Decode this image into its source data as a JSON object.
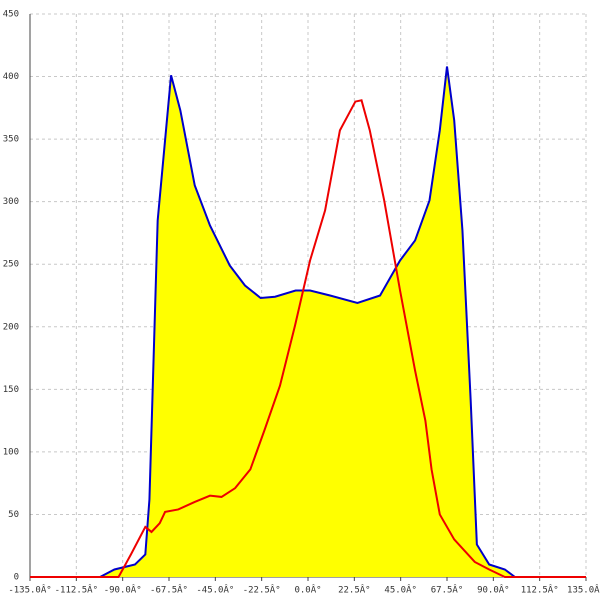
{
  "chart_data": {
    "type": "line",
    "xlim": [
      -135,
      135
    ],
    "xticks": [
      {
        "value": -135,
        "label": "-135.0Â°"
      },
      {
        "value": -112.5,
        "label": "-112.5Â°"
      },
      {
        "value": -90,
        "label": "-90.0Â°"
      },
      {
        "value": -67.5,
        "label": "-67.5Â°"
      },
      {
        "value": -45,
        "label": "-45.0Â°"
      },
      {
        "value": -22.5,
        "label": "-22.5Â°"
      },
      {
        "value": 0,
        "label": "0.0Â°"
      },
      {
        "value": 22.5,
        "label": "22.5Â°"
      },
      {
        "value": 45,
        "label": "45.0Â°"
      },
      {
        "value": 67.5,
        "label": "67.5Â°"
      },
      {
        "value": 90,
        "label": "90.0Â°"
      },
      {
        "value": 112.5,
        "label": "112.5Â°"
      },
      {
        "value": 135,
        "label": "135.0Â°"
      }
    ],
    "ylim": [
      0,
      450
    ],
    "yticks": [
      0,
      50,
      100,
      150,
      200,
      250,
      300,
      350,
      400,
      450
    ],
    "grid": true,
    "series": [
      {
        "color": "#0000cc",
        "fill": "#ffff00",
        "x": [
          -101,
          -94,
          -84,
          -79,
          -77,
          -73,
          -66.5,
          -62,
          -55,
          -47.6,
          -38,
          -30.6,
          -23,
          -16,
          -6,
          1,
          10.7,
          24,
          35,
          44.7,
          52,
          59,
          64,
          67.5,
          71,
          75,
          79,
          82,
          88,
          95.6,
          100.5
        ],
        "values": [
          0,
          6,
          10,
          18,
          62,
          285,
          401,
          373,
          313,
          281,
          249,
          233,
          223,
          224,
          229,
          229,
          225,
          219,
          225,
          253,
          269,
          301,
          357,
          408,
          365,
          277,
          141,
          26,
          10,
          6,
          0
        ]
      },
      {
        "color": "#ee0000",
        "x": [
          -135,
          -92,
          -86,
          -79,
          -76,
          -72,
          -69.4,
          -63,
          -55,
          -47.6,
          -42,
          -35.4,
          -28,
          -21,
          -13.6,
          -6.3,
          1,
          8.3,
          15.5,
          23,
          26,
          30,
          37,
          44.7,
          52,
          57,
          60,
          64,
          71,
          81,
          88,
          95.6,
          135
        ],
        "values": [
          0,
          0,
          18,
          40,
          36,
          43,
          52,
          54,
          60,
          65,
          64,
          71,
          86,
          118,
          153,
          201,
          253,
          293,
          357,
          380,
          381,
          357,
          301,
          229,
          165,
          125,
          86,
          50,
          30,
          12,
          6,
          0,
          0
        ]
      }
    ]
  }
}
